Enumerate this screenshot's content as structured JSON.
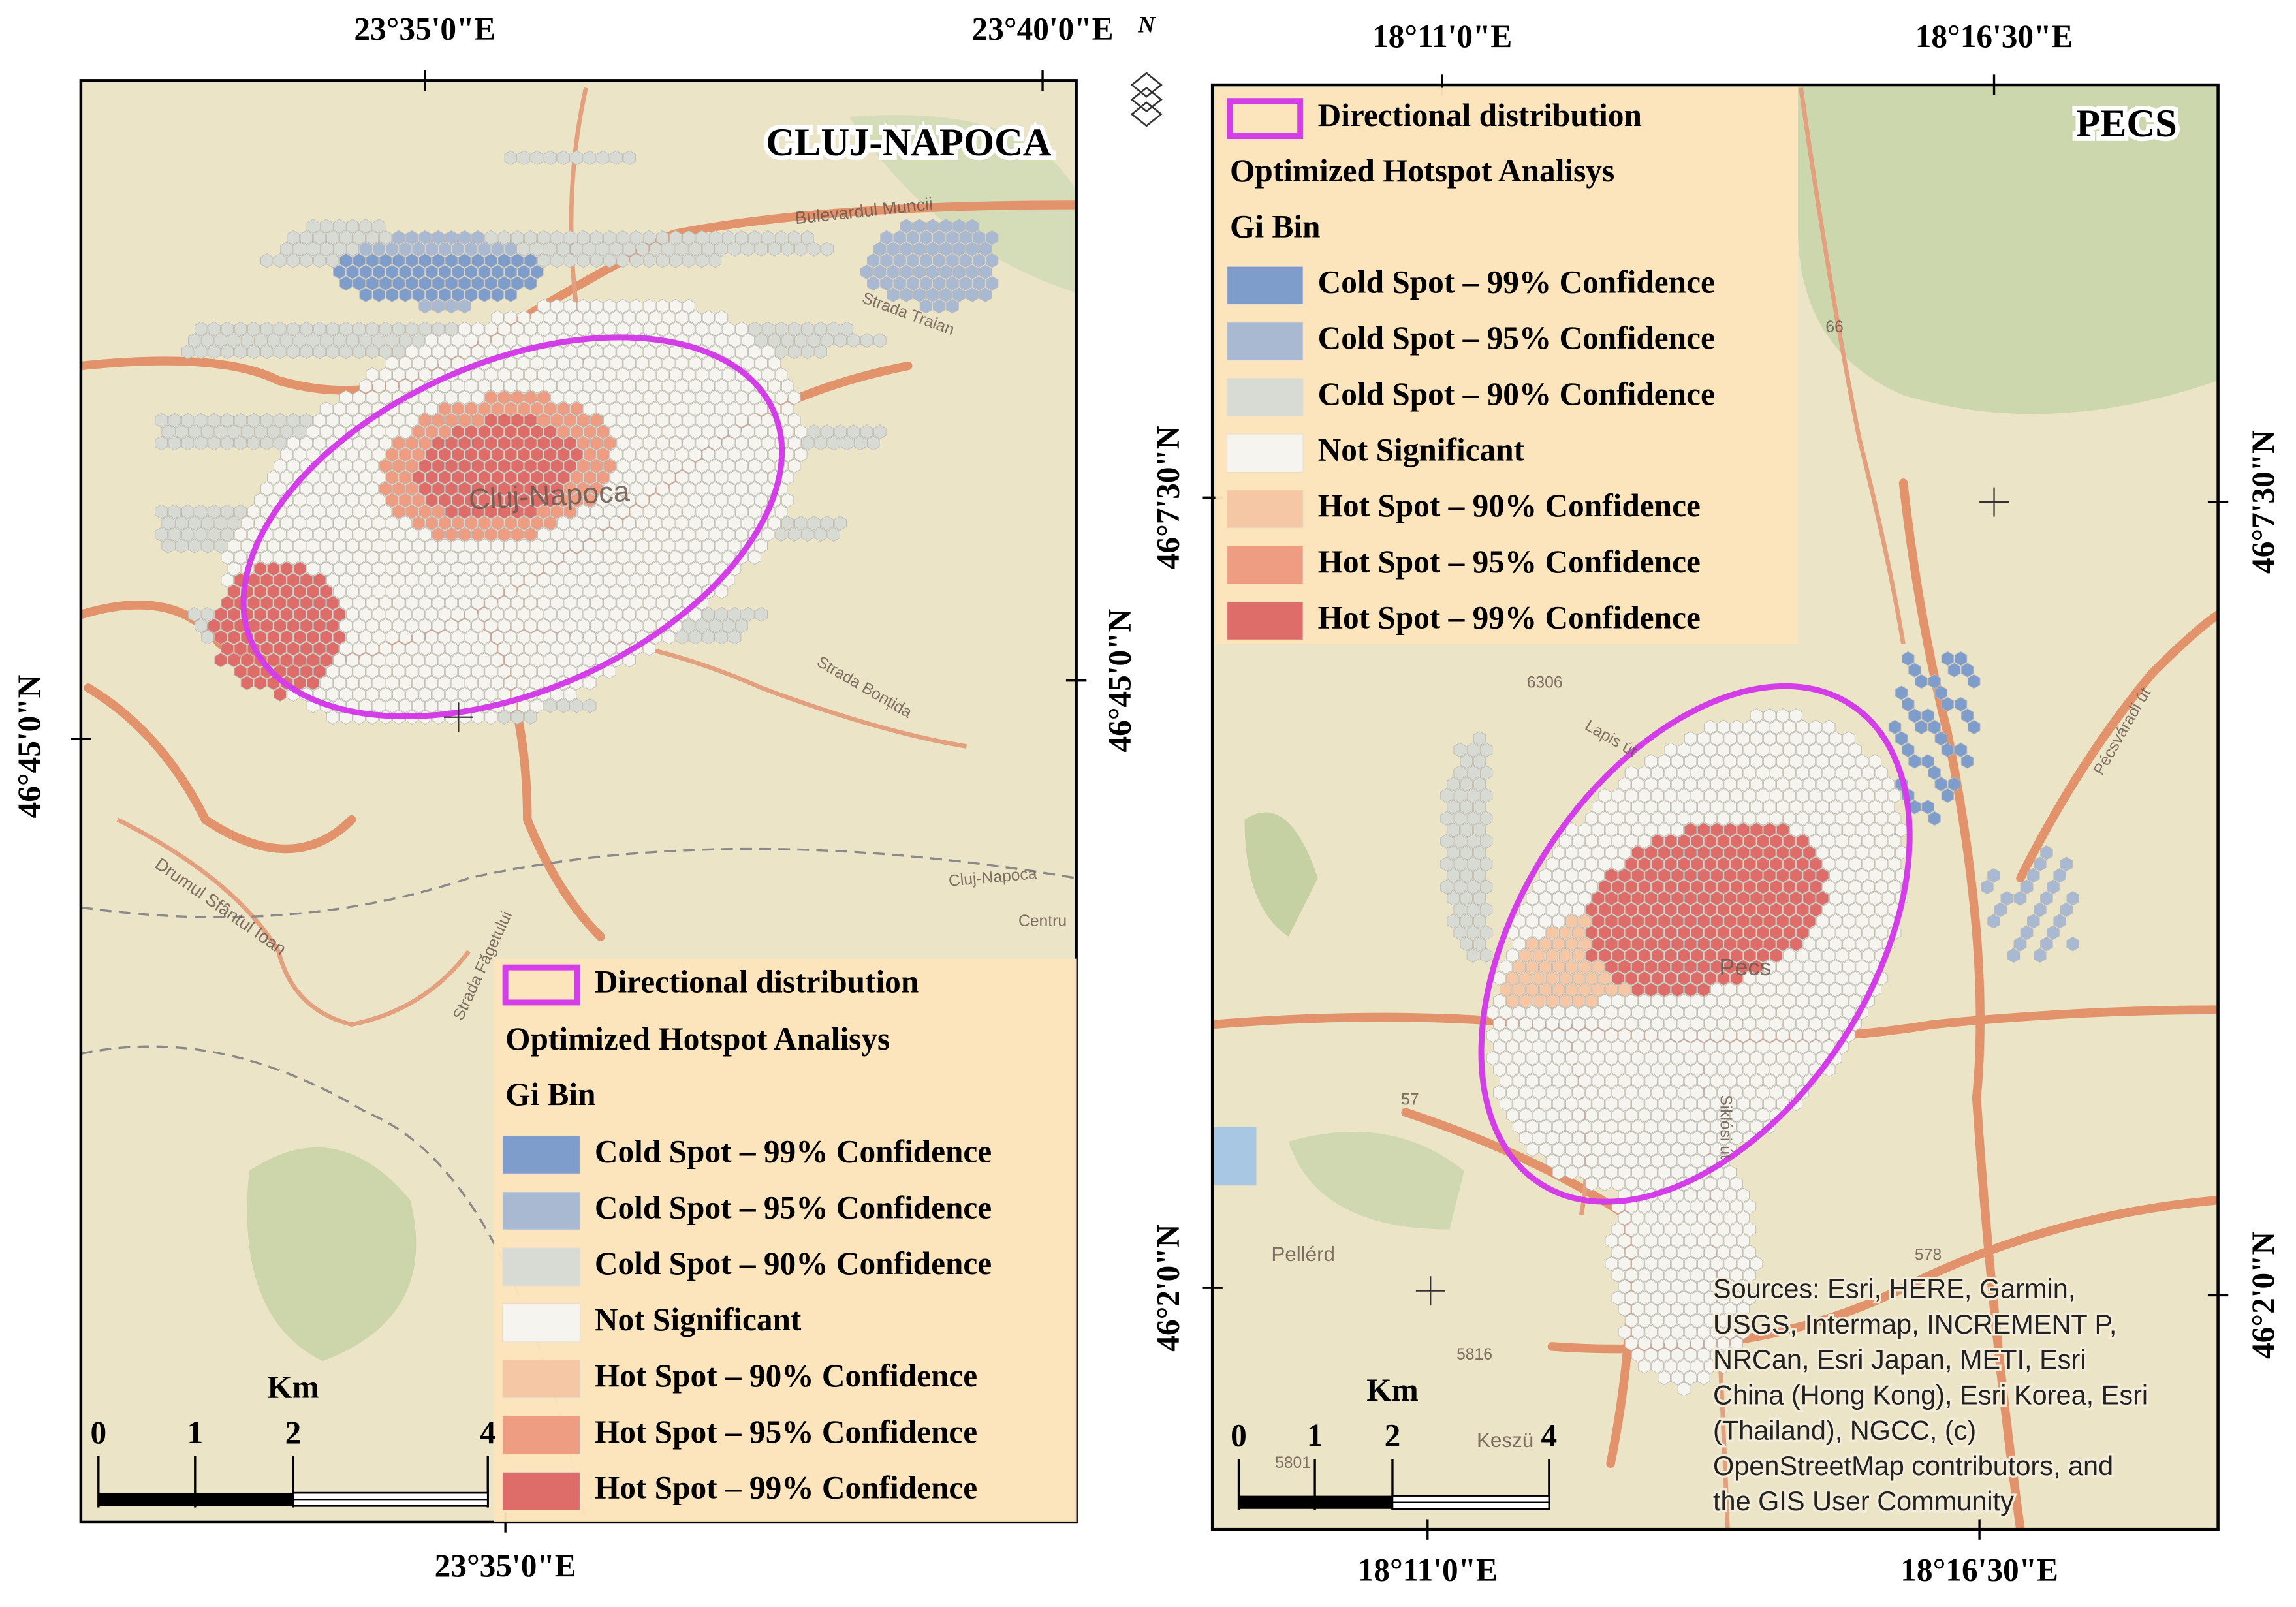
{
  "north_arrow": "N",
  "panels": [
    {
      "title": "CLUJ-NAPOCA",
      "top_coords": [
        "23°35'0\"E",
        "23°40'0\"E"
      ],
      "bottom_coords": [
        "23°35'0\"E"
      ],
      "left_coords": [
        "46°45'0\"N"
      ],
      "right_coords": [
        "46°45'0\"N"
      ],
      "map_labels": [
        "Cluj-Napoca",
        "Bulevardul Muncii",
        "Strada Traian",
        "Strada Bonțida",
        "Drumul Sfântul Ioan",
        "Strada Făgetului",
        "Cluj-Napoca",
        "Centru"
      ],
      "legend": {
        "directional": "Directional distribution",
        "method": "Optimized Hotspot Analisys",
        "field": "Gi Bin",
        "items": [
          {
            "label": "Cold Spot – 99% Confidence",
            "color": "#7f9dcb"
          },
          {
            "label": "Cold Spot – 95% Confidence",
            "color": "#a9b9d1"
          },
          {
            "label": "Cold Spot – 90% Confidence",
            "color": "#d7dbd3"
          },
          {
            "label": "Not Significant",
            "color": "#f6f4ef"
          },
          {
            "label": "Hot Spot – 90% Confidence",
            "color": "#f6c7a5"
          },
          {
            "label": "Hot Spot – 95% Confidence",
            "color": "#ee9c82"
          },
          {
            "label": "Hot Spot – 99% Confidence",
            "color": "#de6d6a"
          }
        ]
      },
      "scale": {
        "unit": "Km",
        "ticks": [
          "0",
          "1",
          "2",
          "4"
        ]
      }
    },
    {
      "title": "PECS",
      "top_coords": [
        "18°11'0\"E",
        "18°16'30\"E"
      ],
      "bottom_coords": [
        "18°11'0\"E",
        "18°16'30\"E"
      ],
      "left_coords": [
        "46°7'30\"N",
        "46°2'0\"N"
      ],
      "right_coords": [
        "46°7'30\"N",
        "46°2'0\"N"
      ],
      "map_labels": [
        "Pecs",
        "Pellérd",
        "Keszü",
        "Lapis út",
        "Siklósi út",
        "Pécsváradi út",
        "6306",
        "5816",
        "5801",
        "57",
        "66",
        "578"
      ],
      "legend": {
        "directional": "Directional distribution",
        "method": "Optimized Hotspot Analisys",
        "field": "Gi Bin",
        "items": [
          {
            "label": "Cold Spot – 99% Confidence",
            "color": "#7f9dcb"
          },
          {
            "label": "Cold Spot – 95% Confidence",
            "color": "#a9b9d1"
          },
          {
            "label": "Cold Spot – 90% Confidence",
            "color": "#d7dbd3"
          },
          {
            "label": "Not Significant",
            "color": "#f6f4ef"
          },
          {
            "label": "Hot Spot – 90% Confidence",
            "color": "#f6c7a5"
          },
          {
            "label": "Hot Spot – 95% Confidence",
            "color": "#ee9c82"
          },
          {
            "label": "Hot Spot – 99% Confidence",
            "color": "#de6d6a"
          }
        ]
      },
      "scale": {
        "unit": "Km",
        "ticks": [
          "0",
          "1",
          "2",
          "4"
        ]
      },
      "sources": [
        "Sources: Esri, HERE, Garmin,",
        "USGS, Intermap, INCREMENT P,",
        "NRCan, Esri Japan, METI, Esri",
        "China (Hong Kong), Esri Korea, Esri",
        "(Thailand), NGCC, (c)",
        "OpenStreetMap contributors, and",
        "the GIS User Community"
      ]
    }
  ]
}
